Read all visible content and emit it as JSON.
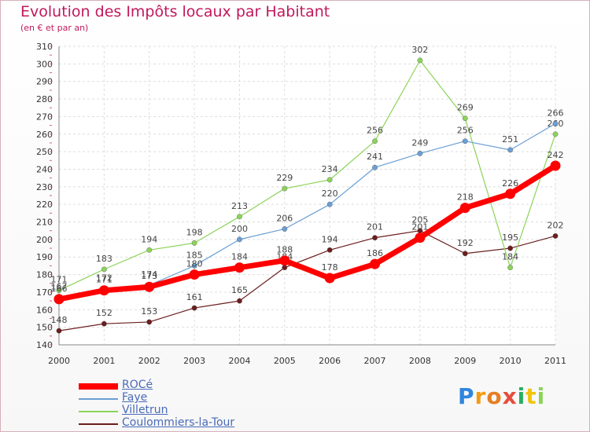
{
  "chart_data": {
    "type": "line",
    "title": "Evolution des Impôts locaux par Habitant",
    "subtitle": "(en € et par an)",
    "xlabel": "",
    "ylabel": "",
    "ylim": [
      140,
      310
    ],
    "yticks": [
      140,
      150,
      160,
      170,
      180,
      190,
      200,
      210,
      220,
      230,
      240,
      250,
      260,
      270,
      280,
      290,
      300,
      310
    ],
    "categories": [
      "2000",
      "2001",
      "2002",
      "2003",
      "2004",
      "2005",
      "2006",
      "2007",
      "2008",
      "2009",
      "2010",
      "2011"
    ],
    "grid": true,
    "legend_position": "bottom-left",
    "series": [
      {
        "name": "Coulommiers-la-Tour",
        "color": "#6b1e1e",
        "values": [
          148,
          152,
          153,
          161,
          165,
          184,
          194,
          201,
          205,
          192,
          195,
          202
        ]
      },
      {
        "name": "Villetrun",
        "color": "#8cd35a",
        "values": [
          171,
          183,
          194,
          198,
          213,
          229,
          234,
          256,
          302,
          269,
          184,
          260
        ]
      },
      {
        "name": "Faye",
        "color": "#6a9fd4",
        "values": [
          167,
          172,
          174,
          185,
          200,
          206,
          220,
          241,
          249,
          256,
          251,
          266
        ]
      },
      {
        "name": "ROCé",
        "color": "#ff0000",
        "values": [
          166,
          171,
          173,
          180,
          184,
          188,
          178,
          186,
          201,
          218,
          226,
          242
        ]
      }
    ]
  },
  "legend": {
    "items": [
      {
        "label": "ROCé",
        "color": "#ff0000"
      },
      {
        "label": "Faye",
        "color": "#6a9fd4"
      },
      {
        "label": "Villetrun",
        "color": "#8cd35a"
      },
      {
        "label": "Coulommiers-la-Tour",
        "color": "#6b1e1e"
      }
    ]
  },
  "logo": {
    "text": "Proxiti",
    "letters": [
      {
        "ch": "P",
        "color": "#2e86de"
      },
      {
        "ch": "r",
        "color": "#f39c12"
      },
      {
        "ch": "o",
        "color": "#e67e22"
      },
      {
        "ch": "x",
        "color": "#e74c3c"
      },
      {
        "ch": "i",
        "color": "#27ae60"
      },
      {
        "ch": "t",
        "color": "#f1c40f"
      },
      {
        "ch": "i",
        "color": "#8cd35a"
      }
    ]
  }
}
